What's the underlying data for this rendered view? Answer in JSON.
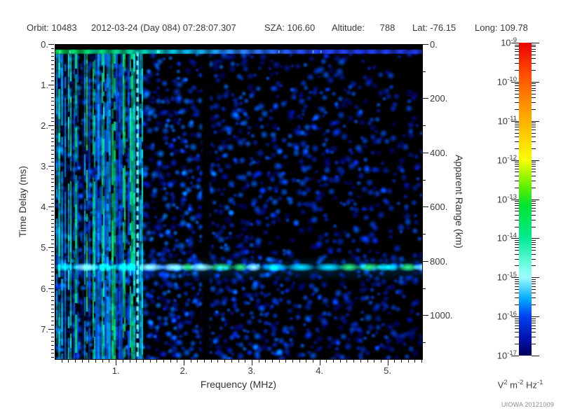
{
  "header": {
    "orbit": "Orbit: 10483",
    "datetime": "2012-03-24 (Day 084) 07:28:07.307",
    "sza": "SZA: 106.60",
    "altitude": "Altitude:      788",
    "lat": "Lat: -76.15",
    "long": "Long: 109.78"
  },
  "plot": {
    "xlabel": "Frequency (MHz)",
    "ylabel_left": "Time Delay (ms)",
    "ylabel_right": "Apparent Range (km)",
    "x_ticks": [
      {
        "v": 1,
        "label": "1."
      },
      {
        "v": 2,
        "label": "2."
      },
      {
        "v": 3,
        "label": "3."
      },
      {
        "v": 4,
        "label": "4."
      },
      {
        "v": 5,
        "label": "5."
      }
    ],
    "y_ticks": [
      {
        "v": 0,
        "label": "0."
      },
      {
        "v": 1,
        "label": "1."
      },
      {
        "v": 2,
        "label": "2."
      },
      {
        "v": 3,
        "label": "3."
      },
      {
        "v": 4,
        "label": "4."
      },
      {
        "v": 5,
        "label": "5."
      },
      {
        "v": 6,
        "label": "6."
      },
      {
        "v": 7,
        "label": "7."
      }
    ],
    "y2_ticks": [
      {
        "v": 0,
        "label": "0."
      },
      {
        "v": 200,
        "label": "200."
      },
      {
        "v": 400,
        "label": "400."
      },
      {
        "v": 600,
        "label": "600."
      },
      {
        "v": 800,
        "label": "800."
      },
      {
        "v": 1000,
        "label": "1000."
      }
    ]
  },
  "colorbar": {
    "decade_exponents": [
      "-9",
      "-10",
      "-11",
      "-12",
      "-13",
      "-14",
      "-15",
      "-16",
      "-17"
    ],
    "units_parts": [
      {
        "t": "V"
      },
      {
        "t": "2",
        "sup": true
      },
      {
        "t": " m"
      },
      {
        "t": "-2",
        "sup": true
      },
      {
        "t": " Hz"
      },
      {
        "t": "-1",
        "sup": true
      }
    ],
    "stops": [
      [
        0,
        "#e80000"
      ],
      [
        0.09,
        "#ff4400"
      ],
      [
        0.19,
        "#ff8c00"
      ],
      [
        0.3,
        "#ffd000"
      ],
      [
        0.375,
        "#f8ff00"
      ],
      [
        0.46,
        "#60f000"
      ],
      [
        0.52,
        "#00e430"
      ],
      [
        0.625,
        "#00eb94"
      ],
      [
        0.72,
        "#7bffe8"
      ],
      [
        0.75,
        "#9cfcff"
      ],
      [
        0.82,
        "#00a8ff"
      ],
      [
        0.875,
        "#0040f0"
      ],
      [
        0.95,
        "#0010a8"
      ],
      [
        1,
        "#000058"
      ]
    ]
  },
  "credit": "UIOWA 20121009",
  "chart_data": {
    "type": "heatmap",
    "title": "MARSIS AIS radar sounder ionogram",
    "x_axis": {
      "label": "Frequency (MHz)",
      "min": 0.1,
      "max": 5.5,
      "major_ticks": [
        1,
        2,
        3,
        4,
        5
      ],
      "minor_step": 0.1
    },
    "y_axis": {
      "label": "Time Delay (ms)",
      "min": 0,
      "max": 7.73,
      "major_ticks": [
        0,
        1,
        2,
        3,
        4,
        5,
        6,
        7
      ],
      "minor_step": 0.1,
      "direction": "down"
    },
    "y2_axis": {
      "label": "Apparent Range (km)",
      "min": 0,
      "max": 1158,
      "major_ticks": [
        0,
        200,
        400,
        600,
        800,
        1000
      ],
      "minor_step": 100,
      "km_per_ms": 149.9
    },
    "color_axis": {
      "label": "V^2 m^-2 Hz^-1",
      "scale": "log",
      "min": 1e-17,
      "max": 1e-09,
      "decades": [
        -9,
        -10,
        -11,
        -12,
        -13,
        -14,
        -15,
        -16,
        -17
      ],
      "legend_position": "right"
    },
    "features": [
      {
        "name": "surface-echo-line",
        "time_delay_ms": 0.17,
        "freq_extent_mhz": [
          0.1,
          5.5
        ],
        "character": "thin horizontal line, green at low frequency fading to blue at high frequency"
      },
      {
        "name": "low-frequency-ionospheric-noise",
        "freq_extent_mhz": [
          0.1,
          1.35
        ],
        "character": "bright green/cyan vertical striping over full delay range"
      },
      {
        "name": "plasma-frequency-harmonic-line",
        "freq_mhz": 1.31,
        "character": "dashed cyan vertical line over full delay range"
      },
      {
        "name": "ground-reflection-band",
        "time_delay_ms": 5.47,
        "apparent_range_km": 820,
        "freq_extent_mhz": [
          0.1,
          5.5
        ],
        "character": "bright green/cyan horizontal band of blobs"
      },
      {
        "name": "instrument-gap",
        "freq_extent_mhz": [
          2.27,
          2.36
        ],
        "character": "black vertical band with no signal"
      },
      {
        "name": "background-noise",
        "character": "diffuse dark-blue speckle, denser at low frequency and later delay, sparse black at top right"
      }
    ],
    "render": {
      "seed": 20121009,
      "noise": {
        "cell": 8,
        "th0": 0.25,
        "thx": 0.5,
        "thy": -0.2,
        "bright": 0.8,
        "brightx": -0.25
      },
      "stripes": {
        "f0": 0.1,
        "f1": 1.27,
        "f2": 1.5
      },
      "plasma_line_mhz": 1.31,
      "gap_mhz": [
        2.27,
        2.36
      ],
      "surface_line_ms": 0.17,
      "ground_ms": 5.47,
      "palette": {
        "noise": [
          [
            0,
            "#000066"
          ],
          [
            0.4,
            "#0030cc"
          ],
          [
            0.68,
            "#0070ff"
          ],
          [
            0.88,
            "#00c8ff"
          ],
          [
            1,
            "#80ffff"
          ]
        ],
        "topline": [
          [
            0,
            "#00e050"
          ],
          [
            0.2,
            "#00dc96"
          ],
          [
            0.33,
            "#00c8e8"
          ],
          [
            0.5,
            "#2f86ff"
          ],
          [
            0.7,
            "#2448ff"
          ],
          [
            1,
            "#2238e8"
          ]
        ],
        "stripe_green": "#00e673",
        "stripe_cyan": "#00f5d4",
        "stripe_blue": "#00aaff",
        "stripe_deep": "#0055ee",
        "stripe_dark": "#001040",
        "dash": "#7bfbe8",
        "band_green": "#2bf060",
        "band_cyan": "#00e0ff",
        "band_pale": "#a8ffff",
        "band_glow": "#0090ff"
      }
    }
  }
}
